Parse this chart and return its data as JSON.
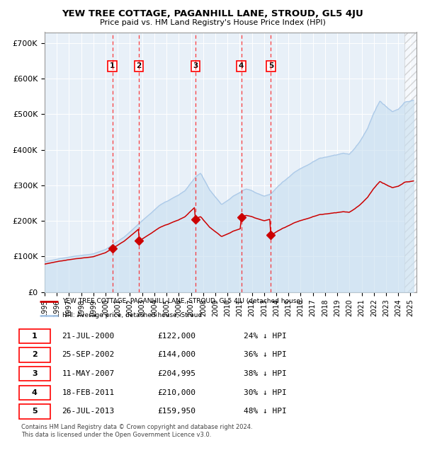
{
  "title": "YEW TREE COTTAGE, PAGANHILL LANE, STROUD, GL5 4JU",
  "subtitle": "Price paid vs. HM Land Registry's House Price Index (HPI)",
  "ylim": [
    0,
    730000
  ],
  "xlim_start": 1995.0,
  "xlim_end": 2025.5,
  "yticks": [
    0,
    100000,
    200000,
    300000,
    400000,
    500000,
    600000,
    700000
  ],
  "ytick_labels": [
    "£0",
    "£100K",
    "£200K",
    "£300K",
    "£400K",
    "£500K",
    "£600K",
    "£700K"
  ],
  "hpi_color": "#aac8e8",
  "hpi_fill_color": "#c8dff0",
  "price_color": "#cc0000",
  "bg_color": "#e8f0f8",
  "grid_color": "#ffffff",
  "sale_dates_x": [
    2000.55,
    2002.73,
    2007.36,
    2011.13,
    2013.56
  ],
  "sale_prices": [
    122000,
    144000,
    204995,
    210000,
    159950
  ],
  "sale_labels": [
    "1",
    "2",
    "3",
    "4",
    "5"
  ],
  "legend_red_label": "YEW TREE COTTAGE, PAGANHILL LANE, STROUD, GL5 4JU (detached house)",
  "legend_blue_label": "HPI: Average price, detached house, Stroud",
  "footer_text": "Contains HM Land Registry data © Crown copyright and database right 2024.\nThis data is licensed under the Open Government Licence v3.0.",
  "table_data": [
    [
      "1",
      "21-JUL-2000",
      "£122,000",
      "24% ↓ HPI"
    ],
    [
      "2",
      "25-SEP-2002",
      "£144,000",
      "36% ↓ HPI"
    ],
    [
      "3",
      "11-MAY-2007",
      "£204,995",
      "38% ↓ HPI"
    ],
    [
      "4",
      "18-FEB-2011",
      "£210,000",
      "30% ↓ HPI"
    ],
    [
      "5",
      "26-JUL-2013",
      "£159,950",
      "48% ↓ HPI"
    ]
  ]
}
